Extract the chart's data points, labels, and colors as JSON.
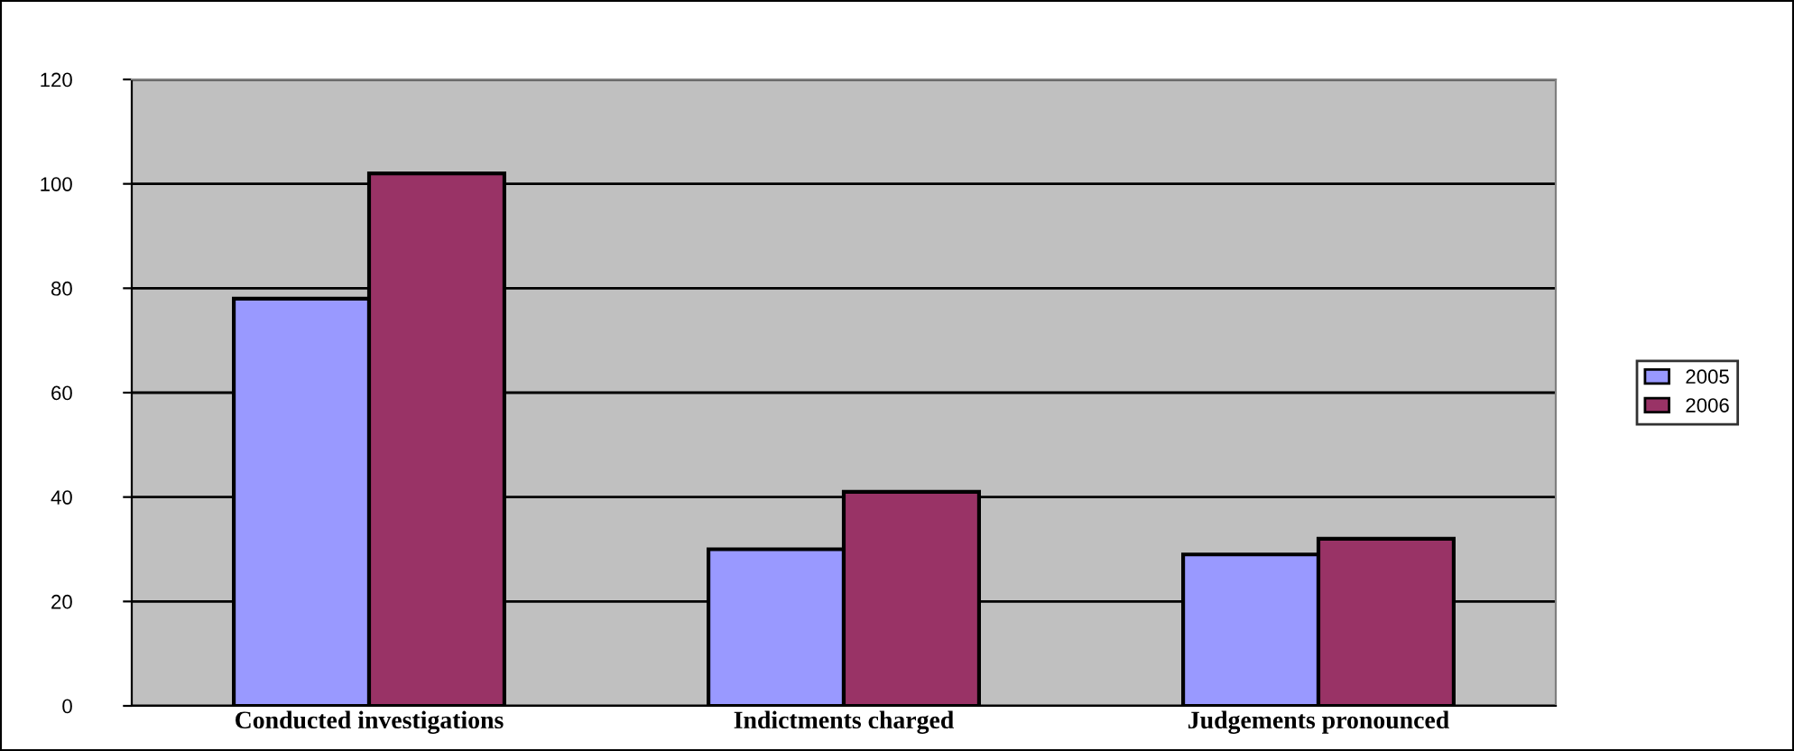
{
  "chart_data": {
    "type": "bar",
    "categories": [
      "Conducted investigations",
      "Indictments charged",
      "Judgements pronounced"
    ],
    "series": [
      {
        "name": "2005",
        "color": "#9999ff",
        "values": [
          78,
          30,
          29
        ]
      },
      {
        "name": "2006",
        "color": "#993366",
        "values": [
          102,
          41,
          32
        ]
      }
    ],
    "ylim": [
      0,
      120
    ],
    "yticks": [
      0,
      20,
      40,
      60,
      80,
      100,
      120
    ],
    "grid": "y",
    "legend": "right"
  }
}
